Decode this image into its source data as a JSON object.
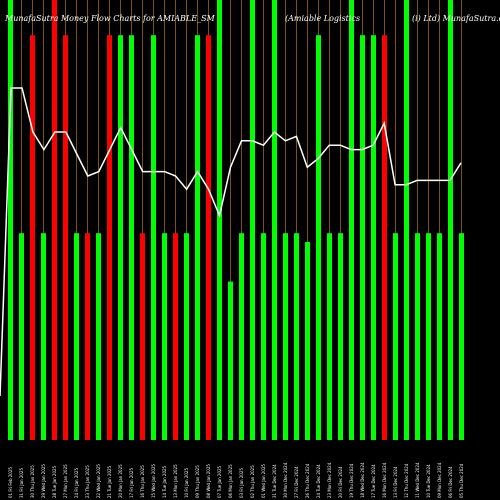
{
  "chart_data": {
    "type": "bar",
    "title_parts": [
      "MunafaSutra  Money Flow  Charts for AMIABLE_SM",
      "(Amiable   Logistics",
      "(i) Ltd) MunafaSutra.com"
    ],
    "colors": {
      "up": "#00ff00",
      "down": "#ff0000",
      "line": "#ffffff",
      "background": "#000000",
      "divider": "#d08a2a"
    },
    "bars": [
      {
        "date": "01 Fri Feb 2025",
        "value": 100,
        "color": "up"
      },
      {
        "date": "31 Fri Jan 2025",
        "value": 47,
        "color": "up"
      },
      {
        "date": "30 Thu Jan 2025",
        "value": 92,
        "color": "down"
      },
      {
        "date": "29 Wed Jan 2025",
        "value": 47,
        "color": "up"
      },
      {
        "date": "28 Tue Jan 2025",
        "value": 100,
        "color": "down"
      },
      {
        "date": "27 Mon Jan 2025",
        "value": 92,
        "color": "down"
      },
      {
        "date": "24 Fri Jan 2025",
        "value": 47,
        "color": "up"
      },
      {
        "date": "23 Thu Jan 2025",
        "value": 47,
        "color": "down"
      },
      {
        "date": "22 Wed Jan 2025",
        "value": 47,
        "color": "up"
      },
      {
        "date": "21 Tue Jan 2025",
        "value": 92,
        "color": "down"
      },
      {
        "date": "20 Mon Jan 2025",
        "value": 92,
        "color": "up"
      },
      {
        "date": "17 Fri Jan 2025",
        "value": 92,
        "color": "up"
      },
      {
        "date": "16 Thu Jan 2025",
        "value": 47,
        "color": "down"
      },
      {
        "date": "15 Wed Jan 2025",
        "value": 92,
        "color": "up"
      },
      {
        "date": "14 Tue Jan 2025",
        "value": 47,
        "color": "up"
      },
      {
        "date": "13 Mon Jan 2025",
        "value": 47,
        "color": "down"
      },
      {
        "date": "10 Fri Jan 2025",
        "value": 47,
        "color": "up"
      },
      {
        "date": "09 Thu Jan 2025",
        "value": 92,
        "color": "up"
      },
      {
        "date": "08 Wed Jan 2025",
        "value": 92,
        "color": "down"
      },
      {
        "date": "07 Tue Jan 2025",
        "value": 100,
        "color": "up"
      },
      {
        "date": "06 Mon Jan 2025",
        "value": 36,
        "color": "up"
      },
      {
        "date": "03 Fri Jan 2025",
        "value": 47,
        "color": "up"
      },
      {
        "date": "02 Thu Jan 2025",
        "value": 100,
        "color": "up"
      },
      {
        "date": "01 Wed Jan 2025",
        "value": 47,
        "color": "up"
      },
      {
        "date": "31 Tue Dec 2024",
        "value": 100,
        "color": "up"
      },
      {
        "date": "30 Mon Dec 2024",
        "value": 47,
        "color": "up"
      },
      {
        "date": "27 Fri Dec 2024",
        "value": 47,
        "color": "up"
      },
      {
        "date": "26 Thu Dec 2024",
        "value": 45,
        "color": "up"
      },
      {
        "date": "24 Tue Dec 2024",
        "value": 92,
        "color": "up"
      },
      {
        "date": "23 Mon Dec 2024",
        "value": 47,
        "color": "up"
      },
      {
        "date": "20 Fri Dec 2024",
        "value": 47,
        "color": "up"
      },
      {
        "date": "19 Thu Dec 2024",
        "value": 100,
        "color": "up"
      },
      {
        "date": "18 Wed Dec 2024",
        "value": 92,
        "color": "up"
      },
      {
        "date": "17 Tue Dec 2024",
        "value": 92,
        "color": "up"
      },
      {
        "date": "16 Mon Dec 2024",
        "value": 92,
        "color": "down"
      },
      {
        "date": "13 Fri Dec 2024",
        "value": 47,
        "color": "up"
      },
      {
        "date": "12 Thu Dec 2024",
        "value": 100,
        "color": "up"
      },
      {
        "date": "11 Wed Dec 2024",
        "value": 47,
        "color": "up"
      },
      {
        "date": "10 Tue Dec 2024",
        "value": 47,
        "color": "up"
      },
      {
        "date": "09 Mon Dec 2024",
        "value": 47,
        "color": "up"
      },
      {
        "date": "06 Fri Dec 2024",
        "value": 100,
        "color": "up"
      },
      {
        "date": "05 Thu Dec 2024",
        "value": 47,
        "color": "up"
      }
    ],
    "line": [
      0.1,
      0.8,
      0.8,
      0.7,
      0.66,
      0.7,
      0.7,
      0.65,
      0.6,
      0.61,
      0.66,
      0.71,
      0.66,
      0.61,
      0.61,
      0.61,
      0.6,
      0.57,
      0.61,
      0.57,
      0.51,
      0.62,
      0.68,
      0.68,
      0.67,
      0.7,
      0.68,
      0.69,
      0.62,
      0.64,
      0.67,
      0.67,
      0.66,
      0.66,
      0.67,
      0.72,
      0.58,
      0.58,
      0.59,
      0.59,
      0.59,
      0.59,
      0.63
    ]
  }
}
